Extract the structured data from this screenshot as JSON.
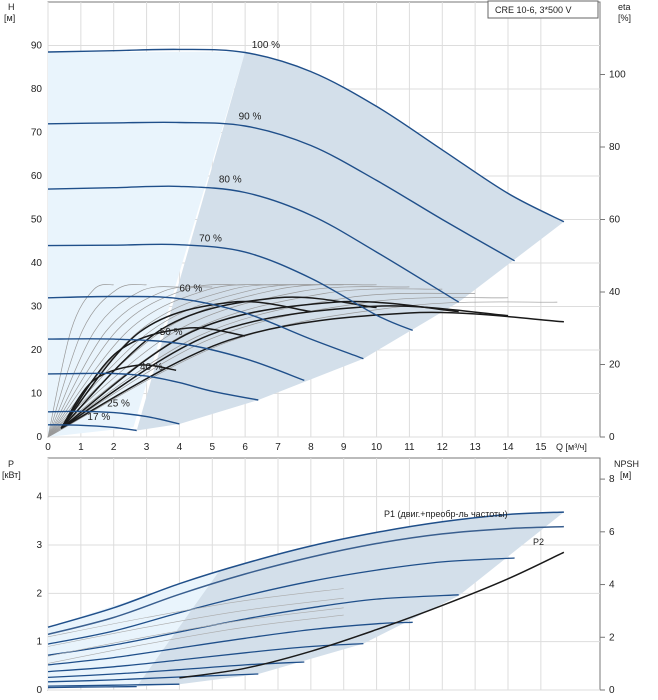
{
  "legend_box": "CRE 10-6, 3*500 V",
  "chart_data": [
    {
      "type": "line",
      "yaxis_left": {
        "label_1": "H",
        "label_2": "[м]",
        "ticks": [
          0,
          10,
          20,
          30,
          40,
          50,
          60,
          70,
          80,
          90
        ],
        "lim": [
          0,
          100
        ]
      },
      "yaxis_right": {
        "label_1": "eta",
        "label_2": "[%]",
        "ticks": [
          0,
          20,
          40,
          60,
          80,
          100
        ]
      },
      "xaxis": {
        "label": "Q [м³/ч]",
        "ticks": [
          0,
          1,
          2,
          3,
          4,
          5,
          6,
          7,
          8,
          9,
          10,
          11,
          12,
          13,
          14,
          15
        ],
        "lim": [
          0,
          16.8
        ]
      },
      "grid": true,
      "speed_curves": [
        {
          "label": "100 %",
          "label_at": [
            6.2,
            89
          ],
          "x": [
            0,
            2,
            4,
            6,
            8,
            10,
            12,
            14,
            15.7
          ],
          "y": [
            88.5,
            88.8,
            89.1,
            88.4,
            84,
            76,
            66,
            56,
            49.5
          ]
        },
        {
          "label": "90 %",
          "label_at": [
            5.8,
            72.5
          ],
          "x": [
            0,
            2,
            4,
            6,
            8,
            10,
            12,
            14.2
          ],
          "y": [
            72,
            72.2,
            72.3,
            71.5,
            67,
            59,
            50,
            40.5
          ]
        },
        {
          "label": "80 %",
          "label_at": [
            5.2,
            58
          ],
          "x": [
            0,
            2,
            4,
            6,
            8,
            10,
            12.5
          ],
          "y": [
            57,
            57.3,
            57.6,
            56.2,
            51,
            42.5,
            31
          ]
        },
        {
          "label": "70 %",
          "label_at": [
            4.6,
            44.5
          ],
          "x": [
            0,
            2,
            4,
            6,
            8,
            10,
            11.1
          ],
          "y": [
            44,
            44.1,
            44.2,
            42.5,
            36.5,
            28,
            24.5
          ]
        },
        {
          "label": "60 %",
          "label_at": [
            4.0,
            33
          ],
          "x": [
            0,
            2,
            4,
            6,
            8,
            9.6
          ],
          "y": [
            32,
            32.3,
            31.8,
            28.5,
            22.5,
            18
          ]
        },
        {
          "label": "50 %",
          "label_at": [
            3.4,
            23
          ],
          "x": [
            0,
            2,
            4,
            6,
            7.8
          ],
          "y": [
            22.5,
            22.5,
            21.5,
            18,
            13
          ]
        },
        {
          "label": "40 %",
          "label_at": [
            2.8,
            15
          ],
          "x": [
            0,
            1,
            2,
            3,
            4,
            5,
            6.4
          ],
          "y": [
            14.5,
            14.6,
            14.6,
            14,
            12.5,
            10.5,
            8.5
          ]
        },
        {
          "label": "25 %",
          "label_at": [
            1.8,
            6.6
          ],
          "x": [
            0,
            1,
            2,
            3,
            4
          ],
          "y": [
            5.8,
            5.9,
            5.6,
            4.7,
            3
          ]
        },
        {
          "label": "17 %",
          "label_at": [
            1.2,
            3.4
          ],
          "x": [
            0,
            1,
            2,
            2.7
          ],
          "y": [
            2.8,
            2.7,
            2.2,
            1.5
          ]
        }
      ]
    },
    {
      "type": "line",
      "yaxis_left": {
        "label_1": "P",
        "label_2": "[кВт]",
        "ticks": [
          0,
          1,
          2,
          3,
          4
        ],
        "lim": [
          0,
          4.8
        ]
      },
      "yaxis_right": {
        "label_1": "NPSH",
        "label_2": "[м]",
        "ticks": [
          0,
          2,
          4,
          6,
          8
        ]
      },
      "grid": true,
      "series": [
        {
          "name": "P1 (двиг.+преобр-ль частоты)",
          "x": [
            0,
            2,
            4,
            6,
            8,
            10,
            12,
            14,
            15.7
          ],
          "y": [
            1.3,
            1.7,
            2.2,
            2.62,
            2.98,
            3.26,
            3.48,
            3.63,
            3.68
          ]
        },
        {
          "name": "P2",
          "x": [
            0,
            2,
            4,
            6,
            8,
            10,
            12,
            14,
            15.7
          ],
          "y": [
            1.15,
            1.5,
            1.98,
            2.4,
            2.75,
            3.03,
            3.23,
            3.34,
            3.38
          ]
        },
        {
          "name": "",
          "x": [
            0,
            2,
            4,
            6,
            8,
            10,
            12,
            14.2
          ],
          "y": [
            0.95,
            1.22,
            1.6,
            1.95,
            2.25,
            2.48,
            2.65,
            2.73
          ]
        },
        {
          "name": "",
          "x": [
            0,
            2,
            4,
            6,
            8,
            10,
            12.5
          ],
          "y": [
            0.72,
            0.93,
            1.2,
            1.47,
            1.7,
            1.88,
            1.97
          ]
        },
        {
          "name": "",
          "x": [
            0,
            2,
            4,
            6,
            8,
            10,
            11.1
          ],
          "y": [
            0.52,
            0.67,
            0.87,
            1.07,
            1.25,
            1.37,
            1.4
          ]
        },
        {
          "name": "",
          "x": [
            0,
            2,
            4,
            6,
            8,
            9.6
          ],
          "y": [
            0.38,
            0.48,
            0.62,
            0.77,
            0.9,
            0.96
          ]
        },
        {
          "name": "",
          "x": [
            0,
            2,
            4,
            6,
            7.8
          ],
          "y": [
            0.26,
            0.33,
            0.42,
            0.52,
            0.58
          ]
        },
        {
          "name": "",
          "x": [
            0,
            2,
            4,
            6.4
          ],
          "y": [
            0.17,
            0.21,
            0.27,
            0.33
          ]
        },
        {
          "name": "",
          "x": [
            0,
            2,
            4
          ],
          "y": [
            0.08,
            0.1,
            0.12
          ]
        },
        {
          "name": "",
          "x": [
            0,
            1,
            2.7
          ],
          "y": [
            0.05,
            0.06,
            0.07
          ]
        }
      ],
      "npsh": {
        "x": [
          4,
          6,
          8,
          10,
          12,
          14,
          15.7
        ],
        "y": [
          0.25,
          0.45,
          0.8,
          1.25,
          1.75,
          2.3,
          2.85
        ]
      }
    }
  ]
}
